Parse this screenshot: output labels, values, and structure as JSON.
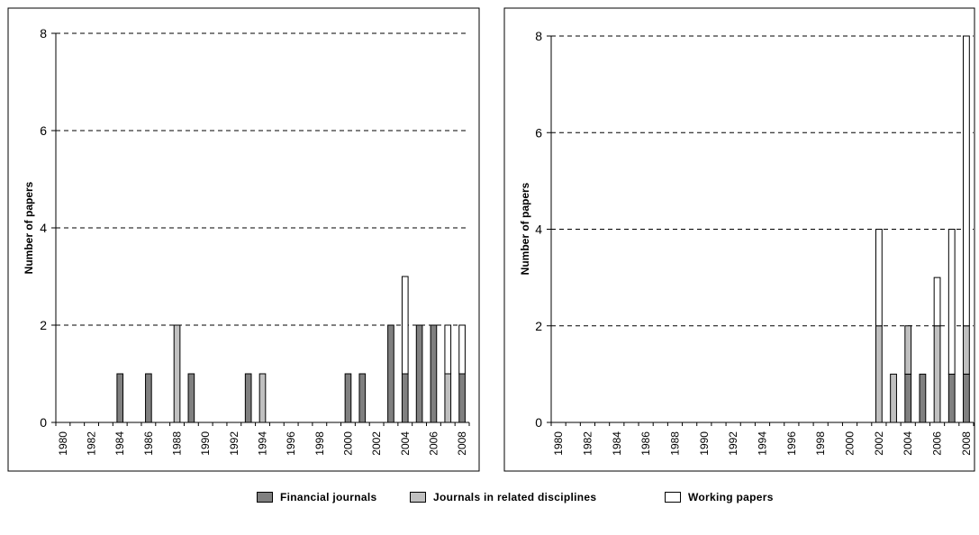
{
  "colors": {
    "financial": "#808080",
    "related": "#c0c0c0",
    "working": "#ffffff"
  },
  "legend": {
    "financial": "Financial journals",
    "related": "Journals in related disciplines",
    "working": "Working papers"
  },
  "chart_data": [
    {
      "type": "bar",
      "stacked": true,
      "ylabel": "Number of papers",
      "ylim": [
        0,
        8
      ],
      "yticks": [
        0,
        2,
        4,
        6,
        8
      ],
      "grid": "horizontal-dashed",
      "x": [
        1980,
        1981,
        1982,
        1983,
        1984,
        1985,
        1986,
        1987,
        1988,
        1989,
        1990,
        1991,
        1992,
        1993,
        1994,
        1995,
        1996,
        1997,
        1998,
        1999,
        2000,
        2001,
        2002,
        2003,
        2004,
        2005,
        2006,
        2007,
        2008
      ],
      "xtick_labels": [
        "1980",
        "1982",
        "1984",
        "1986",
        "1988",
        "1990",
        "1992",
        "1994",
        "1996",
        "1998",
        "2000",
        "2002",
        "2004",
        "2006",
        "2008"
      ],
      "series": [
        {
          "name": "Financial journals",
          "values": [
            0,
            0,
            0,
            0,
            1,
            0,
            1,
            0,
            0,
            1,
            0,
            0,
            0,
            1,
            0,
            0,
            0,
            0,
            0,
            0,
            1,
            1,
            0,
            2,
            1,
            2,
            2,
            0,
            1
          ]
        },
        {
          "name": "Journals in related disciplines",
          "values": [
            0,
            0,
            0,
            0,
            0,
            0,
            0,
            0,
            2,
            0,
            0,
            0,
            0,
            0,
            1,
            0,
            0,
            0,
            0,
            0,
            0,
            0,
            0,
            0,
            0,
            0,
            0,
            1,
            0
          ]
        },
        {
          "name": "Working papers",
          "values": [
            0,
            0,
            0,
            0,
            0,
            0,
            0,
            0,
            0,
            0,
            0,
            0,
            0,
            0,
            0,
            0,
            0,
            0,
            0,
            0,
            0,
            0,
            0,
            0,
            2,
            0,
            0,
            1,
            1
          ]
        }
      ]
    },
    {
      "type": "bar",
      "stacked": true,
      "ylabel": "Number of papers",
      "ylim": [
        0,
        8
      ],
      "yticks": [
        0,
        2,
        4,
        6,
        8
      ],
      "grid": "horizontal-dashed",
      "x": [
        1980,
        1981,
        1982,
        1983,
        1984,
        1985,
        1986,
        1987,
        1988,
        1989,
        1990,
        1991,
        1992,
        1993,
        1994,
        1995,
        1996,
        1997,
        1998,
        1999,
        2000,
        2001,
        2002,
        2003,
        2004,
        2005,
        2006,
        2007,
        2008
      ],
      "xtick_labels": [
        "1980",
        "1982",
        "1984",
        "1986",
        "1988",
        "1990",
        "1992",
        "1994",
        "1996",
        "1998",
        "2000",
        "2002",
        "2004",
        "2006",
        "2008"
      ],
      "series": [
        {
          "name": "Financial journals",
          "values": [
            0,
            0,
            0,
            0,
            0,
            0,
            0,
            0,
            0,
            0,
            0,
            0,
            0,
            0,
            0,
            0,
            0,
            0,
            0,
            0,
            0,
            0,
            0,
            0,
            1,
            1,
            0,
            1,
            1
          ]
        },
        {
          "name": "Journals in related disciplines",
          "values": [
            0,
            0,
            0,
            0,
            0,
            0,
            0,
            0,
            0,
            0,
            0,
            0,
            0,
            0,
            0,
            0,
            0,
            0,
            0,
            0,
            0,
            0,
            2,
            1,
            1,
            0,
            2,
            0,
            1
          ]
        },
        {
          "name": "Working papers",
          "values": [
            0,
            0,
            0,
            0,
            0,
            0,
            0,
            0,
            0,
            0,
            0,
            0,
            0,
            0,
            0,
            0,
            0,
            0,
            0,
            0,
            0,
            0,
            2,
            0,
            0,
            0,
            1,
            3,
            6
          ]
        }
      ]
    }
  ]
}
